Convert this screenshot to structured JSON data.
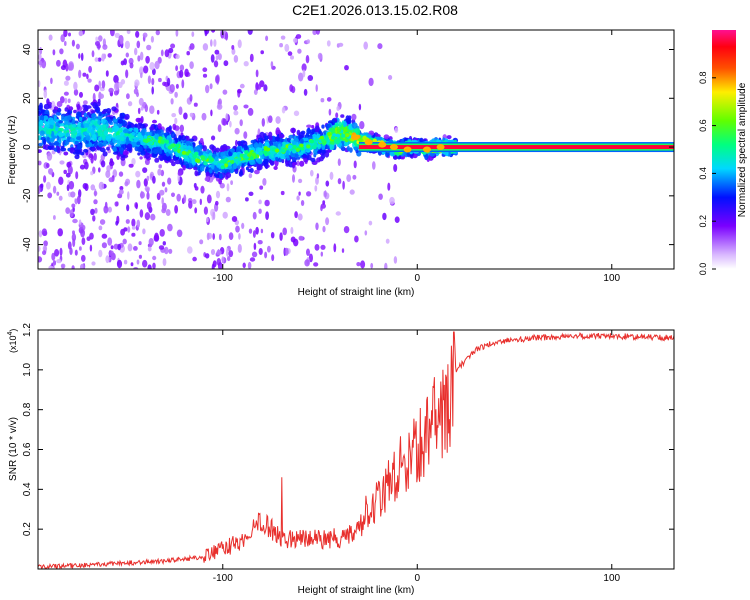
{
  "title": "C2E1.2026.013.15.02.R08",
  "chart_data": [
    {
      "type": "heatmap",
      "xlabel": "Height of straight line (km)",
      "ylabel": "Frequency (Hz)",
      "xlim": [
        -195,
        132
      ],
      "ylim": [
        -50,
        48
      ],
      "xticks": [
        -100,
        0,
        100
      ],
      "yticks": [
        -40,
        -20,
        0,
        20,
        40
      ],
      "xticklabels": [
        "-100",
        "0",
        "100"
      ],
      "yticklabels": [
        "-40",
        "-20",
        "0",
        "20",
        "40"
      ],
      "trace": {
        "x": [
          -195,
          -180,
          -165,
          -150,
          -140,
          -130,
          -120,
          -110,
          -100,
          -90,
          -80,
          -70,
          -60,
          -50,
          -40,
          -35,
          -30,
          -25,
          -20,
          -15,
          -10,
          -5,
          0,
          5,
          10,
          15,
          20,
          50,
          100,
          132
        ],
        "y": [
          8,
          6,
          7,
          5,
          3,
          2,
          -2,
          -5,
          -7,
          -4,
          -2,
          -1,
          0,
          2,
          6,
          5,
          3,
          2,
          1,
          0,
          -1,
          0,
          0,
          -1,
          0,
          0,
          0,
          0,
          0,
          0
        ]
      },
      "colorbar": {
        "label": "Normalized spectral amplitude",
        "range": [
          0.0,
          1.0
        ],
        "ticks": [
          0.0,
          0.2,
          0.4,
          0.6,
          0.8
        ],
        "ticklabels": [
          "0.0",
          "0.2",
          "0.4",
          "0.6",
          "0.8"
        ]
      }
    },
    {
      "type": "line",
      "xlabel": "Height of straight line (km)",
      "ylabel": "SNR (10 * v/v)",
      "yscale_label": "(x10",
      "yscale_exp": "4",
      "yscale_close": ")",
      "xlim": [
        -195,
        132
      ],
      "ylim": [
        0,
        1.2
      ],
      "xticks": [
        -100,
        0,
        100
      ],
      "yticks": [
        0.2,
        0.4,
        0.6,
        0.8,
        1.0,
        1.2
      ],
      "xticklabels": [
        "-100",
        "0",
        "100"
      ],
      "yticklabels": [
        "0.2",
        "0.4",
        "0.6",
        "0.8",
        "1.0",
        "1.2"
      ],
      "series": [
        {
          "name": "SNR",
          "color": "#e8302d",
          "x": [
            -195,
            -170,
            -150,
            -130,
            -110,
            -100,
            -90,
            -80,
            -75,
            -70,
            -60,
            -50,
            -40,
            -30,
            -25,
            -20,
            -15,
            -10,
            -5,
            0,
            5,
            10,
            15,
            20,
            30,
            40,
            60,
            80,
            100,
            132
          ],
          "y": [
            0.01,
            0.02,
            0.03,
            0.04,
            0.06,
            0.1,
            0.14,
            0.25,
            0.2,
            0.15,
            0.16,
            0.15,
            0.14,
            0.2,
            0.28,
            0.35,
            0.42,
            0.5,
            0.55,
            0.6,
            0.68,
            0.74,
            0.8,
            1.0,
            1.1,
            1.14,
            1.16,
            1.17,
            1.17,
            1.16
          ]
        }
      ]
    }
  ]
}
